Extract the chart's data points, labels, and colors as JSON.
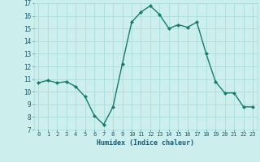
{
  "x": [
    0,
    1,
    2,
    3,
    4,
    5,
    6,
    7,
    8,
    9,
    10,
    11,
    12,
    13,
    14,
    15,
    16,
    17,
    18,
    19,
    20,
    21,
    22,
    23
  ],
  "y": [
    10.7,
    10.9,
    10.7,
    10.8,
    10.4,
    9.6,
    8.1,
    7.4,
    8.8,
    12.2,
    15.5,
    16.3,
    16.8,
    16.1,
    15.0,
    15.3,
    15.1,
    15.5,
    13.0,
    10.8,
    9.9,
    9.9,
    8.8,
    8.8
  ],
  "xlim": [
    -0.5,
    23.5
  ],
  "ylim": [
    7,
    17
  ],
  "yticks": [
    7,
    8,
    9,
    10,
    11,
    12,
    13,
    14,
    15,
    16,
    17
  ],
  "xticks": [
    0,
    1,
    2,
    3,
    4,
    5,
    6,
    7,
    8,
    9,
    10,
    11,
    12,
    13,
    14,
    15,
    16,
    17,
    18,
    19,
    20,
    21,
    22,
    23
  ],
  "xlabel": "Humidex (Indice chaleur)",
  "line_color": "#1a7a6e",
  "marker_color": "#1a7a6e",
  "bg_color": "#cceeed",
  "grid_color": "#aadddb",
  "xlabel_color": "#1a5a6e"
}
